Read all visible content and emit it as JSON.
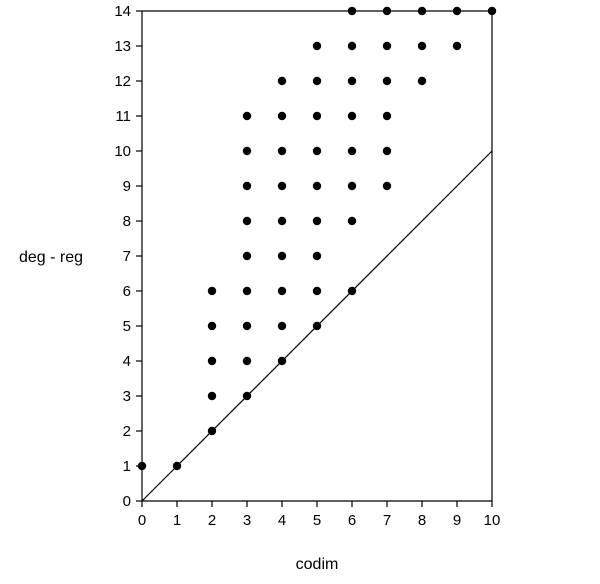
{
  "chart_data": {
    "type": "scatter",
    "title": "",
    "xlabel": "codim",
    "ylabel": "deg - reg",
    "xlim": [
      0,
      10
    ],
    "ylim": [
      0,
      14
    ],
    "x_ticks": [
      "0",
      "1",
      "2",
      "3",
      "4",
      "5",
      "6",
      "7",
      "8",
      "9",
      "10"
    ],
    "y_ticks": [
      "0",
      "1",
      "2",
      "3",
      "4",
      "5",
      "6",
      "7",
      "8",
      "9",
      "10",
      "11",
      "12",
      "13",
      "14"
    ],
    "reference_lines": [
      {
        "from": [
          0,
          0
        ],
        "to": [
          10,
          10
        ]
      },
      {
        "from": [
          0,
          14
        ],
        "to": [
          10,
          14
        ]
      }
    ],
    "points": [
      [
        0,
        1
      ],
      [
        1,
        1
      ],
      [
        2,
        2
      ],
      [
        2,
        3
      ],
      [
        2,
        4
      ],
      [
        2,
        5
      ],
      [
        2,
        6
      ],
      [
        3,
        3
      ],
      [
        3,
        4
      ],
      [
        3,
        5
      ],
      [
        3,
        6
      ],
      [
        3,
        7
      ],
      [
        3,
        8
      ],
      [
        3,
        9
      ],
      [
        3,
        10
      ],
      [
        3,
        11
      ],
      [
        4,
        4
      ],
      [
        4,
        5
      ],
      [
        4,
        6
      ],
      [
        4,
        7
      ],
      [
        4,
        8
      ],
      [
        4,
        9
      ],
      [
        4,
        10
      ],
      [
        4,
        11
      ],
      [
        4,
        12
      ],
      [
        5,
        5
      ],
      [
        5,
        6
      ],
      [
        5,
        7
      ],
      [
        5,
        8
      ],
      [
        5,
        9
      ],
      [
        5,
        10
      ],
      [
        5,
        11
      ],
      [
        5,
        12
      ],
      [
        5,
        13
      ],
      [
        6,
        6
      ],
      [
        6,
        8
      ],
      [
        6,
        9
      ],
      [
        6,
        10
      ],
      [
        6,
        11
      ],
      [
        6,
        12
      ],
      [
        6,
        13
      ],
      [
        6,
        14
      ],
      [
        7,
        9
      ],
      [
        7,
        10
      ],
      [
        7,
        11
      ],
      [
        7,
        12
      ],
      [
        7,
        13
      ],
      [
        7,
        14
      ],
      [
        8,
        12
      ],
      [
        8,
        13
      ],
      [
        8,
        14
      ],
      [
        9,
        13
      ],
      [
        9,
        14
      ],
      [
        10,
        14
      ]
    ],
    "grid": false,
    "colors": {
      "points": "#000000",
      "axes": "#000000",
      "lines": "#000000"
    }
  }
}
